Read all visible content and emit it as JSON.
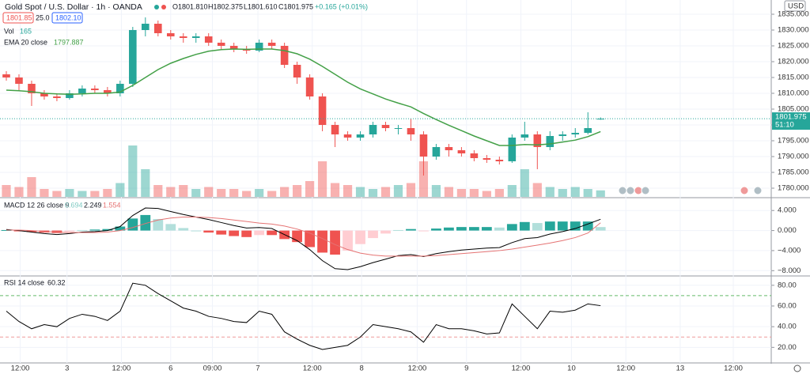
{
  "chart_data": [
    {
      "type": "candlestick",
      "title": "Gold Spot / U.S. Dollar · 1h · OANDA",
      "ohlc_labels": [
        "O1801.810",
        "H1802.375",
        "L1801.610",
        "C1801.975"
      ],
      "change_label": "+0.165 (+0.01%)",
      "quote": {
        "bid": "1801.85",
        "spread": "25.0",
        "ask": "1802.10"
      },
      "currency": "USD",
      "last_price_label": "1801.975",
      "countdown": "51:10",
      "up_color": "#26a69a",
      "down_color": "#ef5350",
      "open": [
        1816,
        1815,
        1813,
        1810,
        1809,
        1808.5,
        1810,
        1811.5,
        1811,
        1810,
        1813,
        1830,
        1832,
        1829,
        1828,
        1827.5,
        1828,
        1826,
        1825,
        1824,
        1823.5,
        1826,
        1825,
        1819,
        1815,
        1809,
        1800,
        1797,
        1796,
        1797,
        1800,
        1799,
        1799,
        1797,
        1790,
        1793,
        1792,
        1791,
        1789.5,
        1789,
        1788.5,
        1796,
        1797,
        1793,
        1796.5,
        1797,
        1797.5,
        1801.81
      ],
      "high": [
        1817,
        1816,
        1814,
        1811,
        1810,
        1811,
        1812.5,
        1812.5,
        1812,
        1814,
        1831,
        1834,
        1833,
        1830,
        1829,
        1829,
        1829,
        1827,
        1826,
        1825,
        1827,
        1827,
        1826,
        1820,
        1816,
        1810,
        1801,
        1798,
        1798,
        1801,
        1801,
        1800,
        1802,
        1798,
        1794,
        1794,
        1793,
        1792,
        1790.5,
        1790,
        1797,
        1801,
        1798,
        1798,
        1798,
        1799,
        1804,
        1802.375
      ],
      "low": [
        1814,
        1811,
        1806,
        1808,
        1807.5,
        1808,
        1809,
        1810,
        1809,
        1809,
        1812,
        1828,
        1828,
        1827,
        1826,
        1826,
        1825,
        1824,
        1823,
        1822.5,
        1823,
        1824,
        1818,
        1813,
        1808,
        1798,
        1793,
        1795,
        1795,
        1796,
        1798,
        1797,
        1795,
        1784,
        1789,
        1790,
        1790,
        1788.5,
        1788,
        1787.5,
        1788,
        1795,
        1786,
        1792,
        1795,
        1796,
        1797,
        1801.61
      ],
      "close": [
        1815,
        1813,
        1810,
        1809,
        1808.5,
        1810,
        1811.5,
        1811,
        1810,
        1813,
        1830,
        1832,
        1829,
        1828,
        1827.5,
        1828,
        1826,
        1825,
        1824,
        1823.5,
        1826,
        1825,
        1819,
        1815,
        1809,
        1800,
        1797,
        1796,
        1797,
        1800,
        1799,
        1799,
        1797,
        1790,
        1793,
        1792,
        1791,
        1789.5,
        1789,
        1788.5,
        1796,
        1797,
        1793,
        1796.5,
        1797,
        1797.5,
        1799,
        1801.975
      ],
      "volume": {
        "name": "Vol",
        "values": [
          300,
          250,
          500,
          200,
          150,
          200,
          150,
          150,
          200,
          350,
          1300,
          700,
          300,
          250,
          300,
          200,
          250,
          200,
          200,
          150,
          200,
          150,
          250,
          300,
          400,
          900,
          350,
          300,
          250,
          200,
          250,
          300,
          350,
          900,
          300,
          250,
          200,
          200,
          150,
          200,
          300,
          700,
          350,
          250,
          200,
          250,
          200,
          165
        ]
      },
      "ema": {
        "name": "EMA 20 close",
        "color": "#43a047",
        "values": [
          1811,
          1810.8,
          1810.5,
          1810,
          1809.8,
          1809.7,
          1809.8,
          1810,
          1810,
          1810.4,
          1812.5,
          1815,
          1817.5,
          1819.5,
          1821,
          1822.3,
          1823.3,
          1823.8,
          1824,
          1823.9,
          1824,
          1824,
          1823.5,
          1822.5,
          1820.8,
          1818.5,
          1816,
          1813.5,
          1811.4,
          1809.8,
          1808.2,
          1806.9,
          1805.7,
          1803.6,
          1801.7,
          1799.9,
          1798.2,
          1796.5,
          1795,
          1793.5,
          1793.5,
          1793.8,
          1793.7,
          1794,
          1794.6,
          1795.2,
          1796.3,
          1797.887
        ]
      },
      "ylim": [
        1777,
        1839.5
      ],
      "yticks": [
        {
          "value": 1780,
          "label": "1780.000"
        },
        {
          "value": 1785,
          "label": "1785.000"
        },
        {
          "value": 1790,
          "label": "1790.000"
        },
        {
          "value": 1795,
          "label": "1795.000"
        },
        {
          "value": 1800,
          "label": "1800.000"
        },
        {
          "value": 1805,
          "label": "1805.000"
        },
        {
          "value": 1810,
          "label": "1810.000"
        },
        {
          "value": 1815,
          "label": "1815.000"
        },
        {
          "value": 1820,
          "label": "1820.000"
        },
        {
          "value": 1825,
          "label": "1825.000"
        },
        {
          "value": 1830,
          "label": "1830.000"
        },
        {
          "value": 1835,
          "label": "1835.000"
        }
      ],
      "xlim": [
        0,
        61
      ],
      "xticks": [
        {
          "value": 1.6,
          "label": "12:00"
        },
        {
          "value": 5.3,
          "label": "3"
        },
        {
          "value": 9.6,
          "label": "12:00"
        },
        {
          "value": 13.5,
          "label": "6"
        },
        {
          "value": 16.8,
          "label": "09:00"
        },
        {
          "value": 20.4,
          "label": "7"
        },
        {
          "value": 24.7,
          "label": "12:00"
        },
        {
          "value": 28.6,
          "label": "8"
        },
        {
          "value": 33,
          "label": "12:00"
        },
        {
          "value": 36.9,
          "label": "9"
        },
        {
          "value": 41.2,
          "label": "12:00"
        },
        {
          "value": 45.2,
          "label": "10"
        },
        {
          "value": 49.5,
          "label": "12:00"
        },
        {
          "value": 53.8,
          "label": "13"
        },
        {
          "value": 58,
          "label": "12:00"
        }
      ],
      "grid": true
    },
    {
      "type": "macd",
      "title": "MACD 12 26 close 9",
      "series": [
        {
          "name": "Histogram",
          "color": "#26a69a",
          "values": [
            0.1,
            -0.1,
            -0.3,
            -0.4,
            -0.5,
            -0.2,
            0.1,
            0.2,
            0.3,
            0.8,
            2.4,
            3.1,
            2.3,
            1.3,
            0.5,
            0,
            -0.4,
            -0.8,
            -1.1,
            -1.3,
            -0.9,
            -0.9,
            -1.7,
            -2.3,
            -3.3,
            -4.4,
            -4.8,
            -4,
            -2.7,
            -1.5,
            -0.6,
            0.1,
            0.3,
            -0.1,
            0.4,
            0.6,
            0.7,
            0.7,
            0.7,
            0.6,
            1.3,
            1.7,
            1.5,
            1.8,
            1.8,
            1.8,
            1.8,
            0.694
          ]
        },
        {
          "name": "MACD",
          "color": "#000000",
          "values": [
            0.2,
            0,
            -0.3,
            -0.6,
            -0.8,
            -0.6,
            -0.3,
            -0.2,
            0,
            0.8,
            3,
            4.5,
            4.4,
            3.8,
            3.2,
            2.7,
            2.2,
            1.6,
            1,
            0.5,
            0.6,
            0.4,
            -0.8,
            -2,
            -3.8,
            -6,
            -7.6,
            -7.8,
            -7.2,
            -6.4,
            -5.7,
            -5,
            -4.8,
            -5.2,
            -4.6,
            -4.2,
            -3.9,
            -3.7,
            -3.5,
            -3.4,
            -2.4,
            -1.6,
            -1.4,
            -0.7,
            -0.2,
            0.4,
            1.3,
            2.249
          ]
        },
        {
          "name": "Signal",
          "color": "#e57373",
          "values": [
            0.1,
            0.1,
            0,
            -0.2,
            -0.3,
            -0.4,
            -0.4,
            -0.4,
            -0.3,
            0,
            0.6,
            1.4,
            2.1,
            2.5,
            2.7,
            2.7,
            2.6,
            2.4,
            2.1,
            1.8,
            1.5,
            1.3,
            0.9,
            0.3,
            -0.5,
            -1.6,
            -2.8,
            -3.8,
            -4.5,
            -4.9,
            -5.1,
            -5.1,
            -5.1,
            -5.1,
            -5,
            -4.8,
            -4.6,
            -4.4,
            -4.2,
            -4,
            -3.7,
            -3.3,
            -2.9,
            -2.5,
            -2,
            -1.4,
            -0.5,
            1.554
          ]
        }
      ],
      "ylim": [
        -8.9,
        6.4
      ],
      "yticks": [
        {
          "value": 4,
          "label": "4.000"
        },
        {
          "value": 0,
          "label": "0.000"
        },
        {
          "value": -4,
          "label": "−4.000"
        },
        {
          "value": -8,
          "label": "−8.000"
        }
      ]
    },
    {
      "type": "rsi",
      "title": "RSI 14 close",
      "color": "#000000",
      "values": [
        55,
        45,
        38,
        42,
        40,
        48,
        52,
        50,
        46,
        55,
        82,
        80,
        72,
        65,
        58,
        55,
        50,
        48,
        45,
        44,
        55,
        52,
        35,
        28,
        22,
        18,
        20,
        22,
        30,
        42,
        40,
        38,
        35,
        25,
        42,
        38,
        38,
        36,
        33,
        34,
        62,
        50,
        38,
        55,
        54,
        56,
        62,
        60.32
      ],
      "bands": [
        70,
        30
      ],
      "ylim": [
        5.75,
        88.25
      ],
      "yticks": [
        {
          "value": 20,
          "label": "20.00"
        },
        {
          "value": 40,
          "label": "40.00"
        },
        {
          "value": 60,
          "label": "60.00"
        },
        {
          "value": 80,
          "label": "80.00"
        }
      ]
    }
  ]
}
